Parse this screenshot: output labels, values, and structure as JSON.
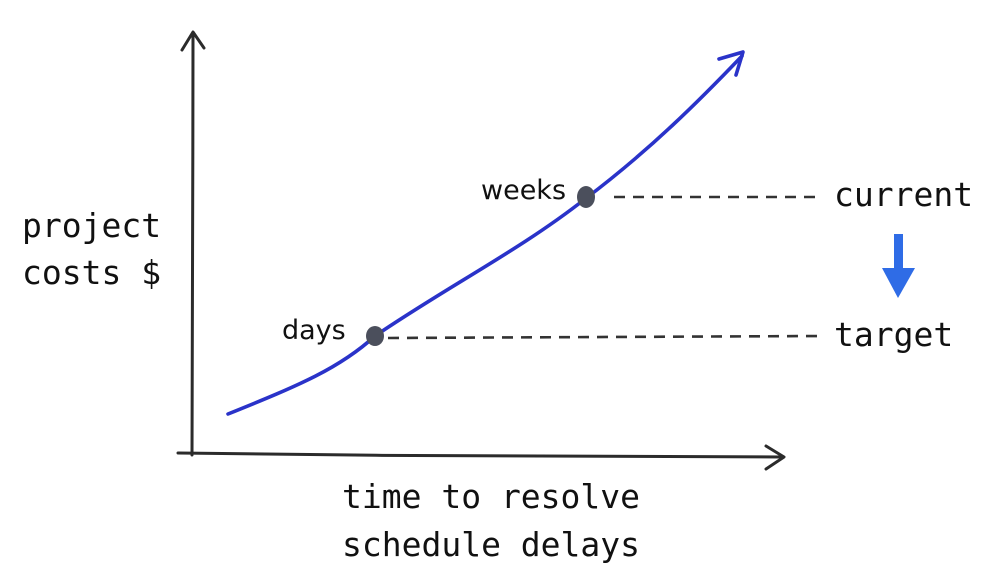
{
  "axes": {
    "y_label_line1": "project",
    "y_label_line2": "costs $",
    "x_label_line1": "time to resolve",
    "x_label_line2": "schedule delays"
  },
  "points": {
    "days_label": "days",
    "weeks_label": "weeks"
  },
  "levels": {
    "current_label": "current",
    "target_label": "target"
  },
  "colors": {
    "curve": "#2a33c9",
    "arrow": "#2f6ce6",
    "axis": "#2b2b2b",
    "marker": "#4b4f5c"
  }
}
